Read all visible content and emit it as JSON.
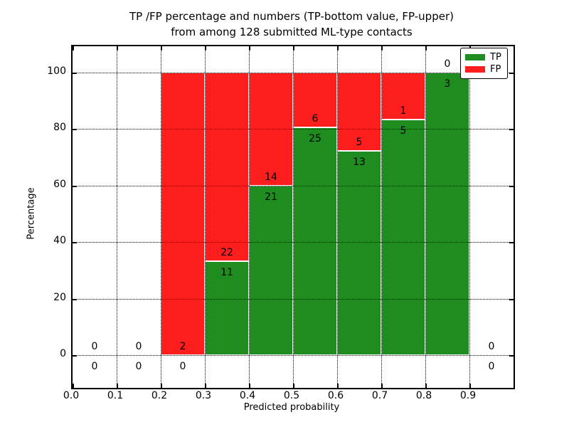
{
  "chart_data": {
    "type": "bar",
    "stacked": true,
    "title_line1": "TP /FP percentage and numbers (TP-bottom value, FP-upper)",
    "title_line2": "from among 128 submitted ML-type contacts",
    "xlabel": "Predicted probability",
    "ylabel": "Percentage",
    "xlim": [
      0.0,
      1.0
    ],
    "ylim": [
      -11.6,
      109.3
    ],
    "grid": "dotted",
    "legend_position": "upper right",
    "legend": [
      {
        "label": "TP",
        "color": "#1e8c1e"
      },
      {
        "label": "FP",
        "color": "#ff1e1e"
      }
    ],
    "bin_width": 0.1,
    "bins": [
      {
        "start": 0.0,
        "tp": 0,
        "fp": 0
      },
      {
        "start": 0.1,
        "tp": 0,
        "fp": 0
      },
      {
        "start": 0.2,
        "tp": 0,
        "fp": 2
      },
      {
        "start": 0.3,
        "tp": 11,
        "fp": 22
      },
      {
        "start": 0.4,
        "tp": 21,
        "fp": 14
      },
      {
        "start": 0.5,
        "tp": 25,
        "fp": 6
      },
      {
        "start": 0.6,
        "tp": 13,
        "fp": 5
      },
      {
        "start": 0.7,
        "tp": 5,
        "fp": 1
      },
      {
        "start": 0.8,
        "tp": 3,
        "fp": 0
      },
      {
        "start": 0.9,
        "tp": 0,
        "fp": 0
      }
    ],
    "x_ticks": [
      {
        "v": 0.0,
        "label": "0.0"
      },
      {
        "v": 0.1,
        "label": "0.1"
      },
      {
        "v": 0.2,
        "label": "0.2"
      },
      {
        "v": 0.3,
        "label": "0.3"
      },
      {
        "v": 0.4,
        "label": "0.4"
      },
      {
        "v": 0.5,
        "label": "0.5"
      },
      {
        "v": 0.6,
        "label": "0.6"
      },
      {
        "v": 0.7,
        "label": "0.7"
      },
      {
        "v": 0.8,
        "label": "0.8"
      },
      {
        "v": 0.9,
        "label": "0.9"
      },
      {
        "v": 1.0,
        "label": ""
      }
    ],
    "y_ticks": [
      {
        "v": 0,
        "label": "0"
      },
      {
        "v": 20,
        "label": "20"
      },
      {
        "v": 40,
        "label": "40"
      },
      {
        "v": 60,
        "label": "60"
      },
      {
        "v": 80,
        "label": "80"
      },
      {
        "v": 100,
        "label": "100"
      }
    ]
  }
}
